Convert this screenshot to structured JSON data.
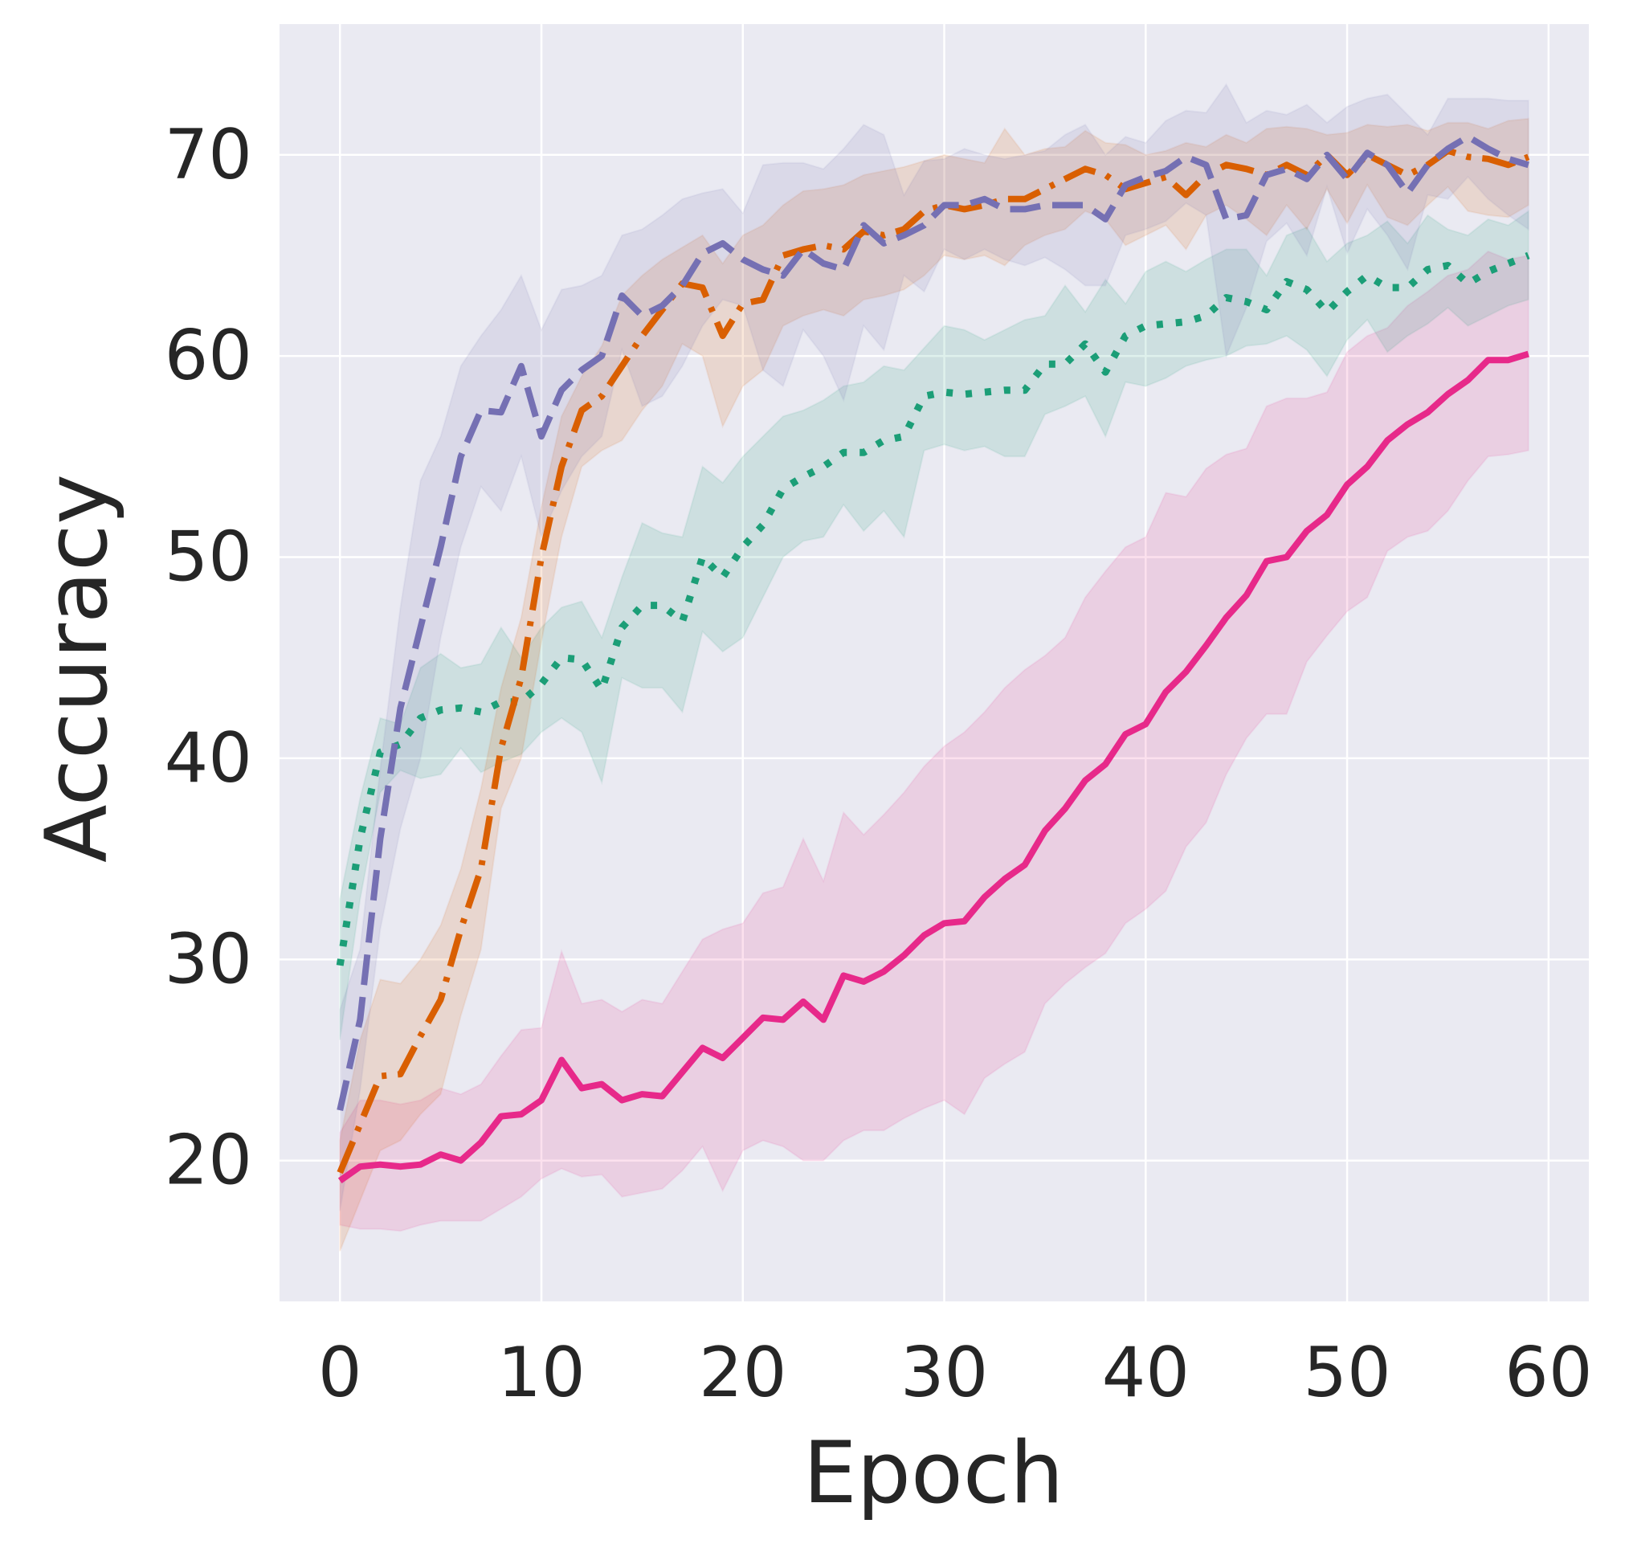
{
  "chart_data": {
    "type": "line",
    "title": "",
    "xlabel": "Epoch",
    "ylabel": "Accuracy",
    "xlim": [
      -3,
      62
    ],
    "ylim": [
      13,
      76.5
    ],
    "xticks": [
      0,
      10,
      20,
      30,
      40,
      50,
      60
    ],
    "yticks": [
      20,
      30,
      40,
      50,
      60,
      70
    ],
    "grid": true,
    "legend": "none",
    "series": [
      {
        "name": "series-pink-solid",
        "color": "#e7298a",
        "dash": "solid",
        "x": [
          0,
          1,
          2,
          3,
          4,
          5,
          6,
          7,
          8,
          9,
          10,
          11,
          12,
          13,
          14,
          15,
          16,
          17,
          18,
          19,
          20,
          21,
          22,
          23,
          24,
          25,
          26,
          27,
          28,
          29,
          30,
          31,
          32,
          33,
          34,
          35,
          36,
          37,
          38,
          39,
          40,
          41,
          42,
          43,
          44,
          45,
          46,
          47,
          48,
          49,
          50,
          51,
          52,
          53,
          54,
          55,
          56,
          57,
          58,
          59
        ],
        "mean": [
          19.0,
          19.7,
          19.8,
          19.7,
          19.8,
          20.3,
          20.0,
          20.9,
          22.2,
          22.3,
          23.0,
          25.0,
          23.6,
          23.8,
          23.0,
          23.3,
          23.2,
          24.4,
          25.6,
          25.1,
          26.1,
          27.1,
          27.0,
          27.9,
          27.0,
          29.2,
          28.9,
          29.4,
          30.2,
          31.2,
          31.8,
          31.9,
          33.1,
          34.0,
          34.7,
          36.4,
          37.5,
          38.9,
          39.7,
          41.2,
          41.7,
          43.3,
          44.3,
          45.6,
          47.0,
          48.1,
          49.8,
          50.0,
          51.3,
          52.1,
          53.6,
          54.5,
          55.8,
          56.6,
          57.2,
          58.1,
          58.8,
          59.8,
          59.8,
          60.1
        ],
        "upper": [
          21.4,
          23.0,
          23.0,
          22.8,
          23.0,
          23.6,
          23.3,
          23.8,
          25.2,
          26.5,
          26.6,
          30.4,
          27.8,
          28.0,
          27.4,
          28.0,
          27.8,
          29.4,
          31.0,
          31.5,
          31.8,
          33.3,
          33.6,
          36.0,
          33.9,
          37.3,
          36.2,
          37.2,
          38.3,
          39.6,
          40.6,
          41.3,
          42.3,
          43.5,
          44.4,
          45.1,
          46.0,
          48.0,
          49.3,
          50.5,
          51.0,
          53.2,
          53.0,
          54.4,
          55.1,
          55.4,
          57.5,
          57.9,
          57.9,
          58.2,
          60.2,
          61.0,
          61.4,
          62.5,
          63.2,
          64.0,
          64.3,
          65.2,
          64.8,
          65.0
        ],
        "lower": [
          16.8,
          16.6,
          16.6,
          16.5,
          16.8,
          17.0,
          17.0,
          17.0,
          17.6,
          18.2,
          19.1,
          19.6,
          19.2,
          19.3,
          18.2,
          18.4,
          18.6,
          19.5,
          20.7,
          18.5,
          20.5,
          21.0,
          20.7,
          20.0,
          20.0,
          21.0,
          21.5,
          21.5,
          22.1,
          22.6,
          23.0,
          22.3,
          24.1,
          24.8,
          25.4,
          27.8,
          28.8,
          29.6,
          30.3,
          31.8,
          32.5,
          33.4,
          35.6,
          36.8,
          39.2,
          41.0,
          42.2,
          42.2,
          44.8,
          46.1,
          47.3,
          48.0,
          50.3,
          51.0,
          51.3,
          52.3,
          53.8,
          55.0,
          55.1,
          55.3
        ]
      },
      {
        "name": "series-green-dotted",
        "color": "#1b9e77",
        "dash": "dotted",
        "x": [
          0,
          1,
          2,
          3,
          4,
          5,
          6,
          7,
          8,
          9,
          10,
          11,
          12,
          13,
          14,
          15,
          16,
          17,
          18,
          19,
          20,
          21,
          22,
          23,
          24,
          25,
          26,
          27,
          28,
          29,
          30,
          31,
          32,
          33,
          34,
          35,
          36,
          37,
          38,
          39,
          40,
          41,
          42,
          43,
          44,
          45,
          46,
          47,
          48,
          49,
          50,
          51,
          52,
          53,
          54,
          55,
          56,
          57,
          58,
          59
        ],
        "mean": [
          29.7,
          36.0,
          40.3,
          40.7,
          42.0,
          42.4,
          42.5,
          42.3,
          42.8,
          42.8,
          43.7,
          45.0,
          44.9,
          43.4,
          46.5,
          47.6,
          47.6,
          46.8,
          50.0,
          49.0,
          50.5,
          51.6,
          53.4,
          54.0,
          54.5,
          55.2,
          55.2,
          55.8,
          56.0,
          58.0,
          58.2,
          58.1,
          58.2,
          58.3,
          58.3,
          59.6,
          59.6,
          60.6,
          59.2,
          61.0,
          61.5,
          61.6,
          61.7,
          62.0,
          62.9,
          62.7,
          62.3,
          63.7,
          63.3,
          62.2,
          63.2,
          64.0,
          63.4,
          63.4,
          64.3,
          64.5,
          63.6,
          64.2,
          64.6,
          65.0
        ],
        "upper": [
          33.0,
          38.0,
          42.0,
          41.7,
          44.5,
          45.2,
          44.5,
          44.7,
          46.5,
          45.0,
          46.5,
          47.5,
          47.8,
          46.0,
          49.0,
          51.7,
          51.2,
          51.0,
          54.5,
          53.7,
          55.0,
          56.0,
          57.0,
          57.3,
          57.8,
          58.5,
          58.7,
          59.5,
          59.3,
          60.4,
          61.5,
          61.3,
          60.8,
          61.3,
          61.8,
          62.0,
          63.5,
          62.2,
          63.8,
          62.6,
          64.2,
          64.7,
          64.2,
          64.8,
          65.3,
          65.3,
          64.0,
          66.0,
          66.4,
          64.7,
          65.6,
          66.0,
          66.7,
          65.6,
          67.0,
          66.3,
          66.0,
          66.8,
          66.5,
          67.2
        ],
        "lower": [
          26.0,
          33.0,
          38.3,
          39.4,
          39.0,
          39.2,
          40.5,
          39.3,
          39.8,
          40.2,
          41.3,
          42.0,
          41.3,
          38.8,
          44.0,
          43.5,
          43.5,
          42.3,
          46.3,
          45.3,
          46.0,
          48.0,
          50.0,
          50.8,
          51.0,
          52.6,
          51.3,
          52.3,
          51.0,
          55.3,
          55.6,
          55.3,
          55.5,
          55.0,
          55.0,
          57.1,
          57.5,
          58.0,
          56.0,
          58.7,
          58.5,
          58.9,
          59.5,
          59.8,
          60.0,
          60.5,
          60.6,
          61.0,
          60.3,
          59.0,
          60.8,
          61.8,
          60.2,
          61.0,
          61.6,
          62.4,
          61.5,
          62.0,
          62.5,
          62.8
        ]
      },
      {
        "name": "series-orange-dashdot",
        "color": "#d95f02",
        "dash": "dashdot",
        "x": [
          0,
          1,
          2,
          3,
          4,
          5,
          6,
          7,
          8,
          9,
          10,
          11,
          12,
          13,
          14,
          15,
          16,
          17,
          18,
          19,
          20,
          21,
          22,
          23,
          24,
          25,
          26,
          27,
          28,
          29,
          30,
          31,
          32,
          33,
          34,
          35,
          36,
          37,
          38,
          39,
          40,
          41,
          42,
          43,
          44,
          45,
          46,
          47,
          48,
          49,
          50,
          51,
          52,
          53,
          54,
          55,
          56,
          57,
          58,
          59
        ],
        "mean": [
          19.4,
          21.8,
          24.2,
          24.3,
          26.2,
          28.0,
          31.5,
          34.5,
          40.5,
          44.0,
          50.0,
          54.5,
          57.3,
          58.0,
          59.5,
          61.0,
          62.3,
          63.6,
          63.4,
          61.0,
          62.6,
          62.8,
          65.0,
          65.3,
          65.5,
          65.3,
          66.2,
          66.0,
          66.3,
          67.2,
          67.5,
          67.3,
          67.5,
          67.8,
          67.8,
          68.3,
          68.8,
          69.3,
          69.0,
          68.3,
          68.6,
          68.9,
          68.0,
          69.0,
          69.5,
          69.3,
          69.0,
          69.5,
          69.0,
          70.0,
          69.0,
          70.0,
          69.5,
          69.0,
          69.5,
          70.2,
          69.9,
          69.8,
          69.5,
          69.9
        ],
        "upper": [
          21.0,
          26.0,
          29.0,
          28.8,
          30.0,
          31.7,
          34.5,
          38.5,
          43.5,
          47.0,
          52.5,
          57.0,
          59.0,
          60.5,
          63.0,
          64.0,
          64.8,
          65.4,
          66.0,
          64.6,
          66.0,
          66.5,
          67.5,
          68.2,
          68.3,
          68.5,
          69.0,
          69.2,
          69.4,
          69.7,
          70.0,
          69.8,
          69.6,
          71.3,
          70.0,
          70.3,
          70.4,
          71.2,
          70.6,
          70.5,
          70.0,
          70.2,
          70.6,
          70.4,
          71.0,
          70.6,
          71.3,
          71.4,
          71.3,
          71.0,
          71.1,
          71.5,
          71.4,
          71.5,
          71.2,
          71.6,
          71.6,
          71.3,
          71.7,
          71.8
        ],
        "lower": [
          15.5,
          18.0,
          20.5,
          21.0,
          22.3,
          23.3,
          27.2,
          30.5,
          37.5,
          40.0,
          45.8,
          51.0,
          54.5,
          55.3,
          55.8,
          57.3,
          58.5,
          60.6,
          60.0,
          56.5,
          58.5,
          59.3,
          61.5,
          62.0,
          62.3,
          62.0,
          62.8,
          63.0,
          63.3,
          64.0,
          65.0,
          64.8,
          65.0,
          64.5,
          65.5,
          66.0,
          66.3,
          67.2,
          66.8,
          65.5,
          66.0,
          66.5,
          65.3,
          67.0,
          67.5,
          66.8,
          66.0,
          67.5,
          66.3,
          68.3,
          66.6,
          68.5,
          66.9,
          66.5,
          67.5,
          68.4,
          67.2,
          67.0,
          66.9,
          67.5
        ]
      },
      {
        "name": "series-purple-dashed",
        "color": "#7570b3",
        "dash": "dashed",
        "x": [
          0,
          1,
          2,
          3,
          4,
          5,
          6,
          7,
          8,
          9,
          10,
          11,
          12,
          13,
          14,
          15,
          16,
          17,
          18,
          19,
          20,
          21,
          22,
          23,
          24,
          25,
          26,
          27,
          28,
          29,
          30,
          31,
          32,
          33,
          34,
          35,
          36,
          37,
          38,
          39,
          40,
          41,
          42,
          43,
          44,
          45,
          46,
          47,
          48,
          49,
          50,
          51,
          52,
          53,
          54,
          55,
          56,
          57,
          58,
          59
        ],
        "mean": [
          22.5,
          27.0,
          36.0,
          42.5,
          46.5,
          50.5,
          55.0,
          57.3,
          57.2,
          59.5,
          56.0,
          58.3,
          59.3,
          60.0,
          63.0,
          62.0,
          62.5,
          63.5,
          65.1,
          65.6,
          64.8,
          64.3,
          64.0,
          65.3,
          64.6,
          64.3,
          66.5,
          65.6,
          66.0,
          66.5,
          67.5,
          67.5,
          67.8,
          67.3,
          67.3,
          67.5,
          67.5,
          67.5,
          66.8,
          68.5,
          68.9,
          69.2,
          69.9,
          69.5,
          66.8,
          67.0,
          69.0,
          69.3,
          68.8,
          70.0,
          68.8,
          70.1,
          69.5,
          68.1,
          69.5,
          70.3,
          70.9,
          70.3,
          69.8,
          69.5
        ],
        "upper": [
          27.5,
          30.5,
          39.5,
          47.5,
          53.8,
          56.0,
          59.5,
          61.0,
          62.3,
          64.0,
          61.3,
          63.3,
          63.5,
          64.0,
          66.0,
          66.3,
          67.0,
          67.8,
          68.1,
          68.3,
          67.1,
          69.5,
          69.6,
          69.6,
          69.3,
          70.3,
          71.5,
          71.0,
          68.0,
          69.7,
          69.8,
          70.3,
          70.0,
          69.8,
          70.0,
          70.2,
          71.0,
          71.5,
          70.0,
          70.9,
          70.6,
          71.7,
          72.2,
          72.1,
          73.5,
          71.6,
          72.2,
          72.0,
          72.5,
          71.6,
          72.4,
          72.8,
          73.0,
          72.0,
          71.0,
          72.8,
          72.8,
          72.8,
          72.7,
          72.7
        ],
        "lower": [
          17.5,
          23.5,
          31.5,
          36.5,
          40.0,
          46.0,
          50.5,
          53.5,
          52.3,
          55.0,
          51.0,
          53.3,
          55.0,
          56.0,
          60.3,
          57.5,
          58.0,
          59.5,
          61.5,
          62.8,
          62.5,
          59.3,
          58.5,
          61.3,
          60.0,
          57.8,
          61.5,
          60.3,
          64.0,
          63.2,
          65.3,
          64.8,
          65.3,
          64.8,
          64.5,
          64.9,
          64.3,
          63.5,
          63.5,
          66.0,
          66.3,
          66.7,
          67.6,
          67.0,
          60.0,
          62.4,
          65.7,
          66.6,
          65.0,
          68.4,
          65.1,
          67.3,
          66.0,
          64.3,
          68.0,
          67.8,
          68.9,
          67.8,
          67.0,
          66.3
        ]
      }
    ]
  }
}
